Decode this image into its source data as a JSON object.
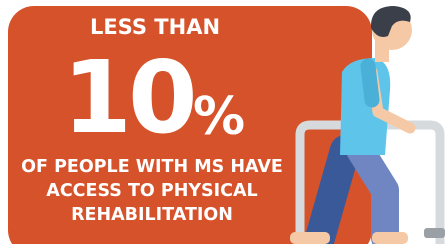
{
  "headline": {
    "prefix": "LESS THAN",
    "figure": "10",
    "unit": "%",
    "lines": [
      "OF PEOPLE WITH MS HAVE",
      "ACCESS TO PHYSICAL",
      "REHABILITATION"
    ]
  }
}
